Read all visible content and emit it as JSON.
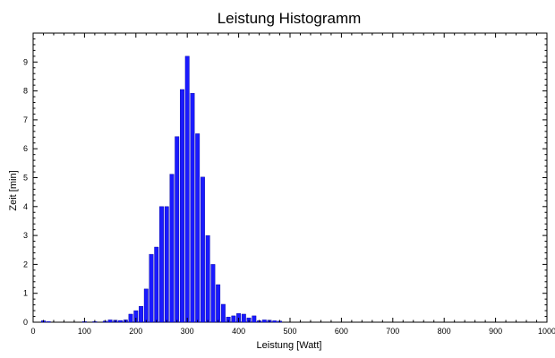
{
  "chart_data": {
    "type": "bar",
    "title": "Leistung Histogramm",
    "xlabel": "Leistung [Watt]",
    "ylabel": "Zeit [min]",
    "xlim": [
      0,
      1000
    ],
    "ylim": [
      0,
      10
    ],
    "grid": false,
    "bar_color": "#1a1aff",
    "bar_edge_color": "#000099",
    "x_ticks": [
      0,
      100,
      200,
      300,
      400,
      500,
      600,
      700,
      800,
      900,
      1000
    ],
    "x_tick_labels": [
      "0",
      "100",
      "200",
      "300",
      "400",
      "500",
      "600",
      "700",
      "800",
      "900",
      "1000"
    ],
    "y_ticks": [
      0,
      1,
      2,
      3,
      4,
      5,
      6,
      7,
      8,
      9
    ],
    "y_tick_labels": [
      "0",
      "1",
      "2",
      "3",
      "4",
      "5",
      "6",
      "7",
      "8",
      "9"
    ],
    "bin_width": 10,
    "bins": [
      {
        "x": 20,
        "y": 0.05
      },
      {
        "x": 30,
        "y": 0.02
      },
      {
        "x": 100,
        "y": 0.02
      },
      {
        "x": 120,
        "y": 0.02
      },
      {
        "x": 140,
        "y": 0.04
      },
      {
        "x": 150,
        "y": 0.08
      },
      {
        "x": 160,
        "y": 0.07
      },
      {
        "x": 170,
        "y": 0.06
      },
      {
        "x": 180,
        "y": 0.08
      },
      {
        "x": 190,
        "y": 0.28
      },
      {
        "x": 200,
        "y": 0.4
      },
      {
        "x": 210,
        "y": 0.55
      },
      {
        "x": 220,
        "y": 1.15
      },
      {
        "x": 230,
        "y": 2.35
      },
      {
        "x": 240,
        "y": 2.6
      },
      {
        "x": 250,
        "y": 4.0
      },
      {
        "x": 260,
        "y": 4.0
      },
      {
        "x": 270,
        "y": 5.12
      },
      {
        "x": 280,
        "y": 6.42
      },
      {
        "x": 290,
        "y": 8.05
      },
      {
        "x": 300,
        "y": 9.2
      },
      {
        "x": 310,
        "y": 7.92
      },
      {
        "x": 320,
        "y": 6.52
      },
      {
        "x": 330,
        "y": 5.02
      },
      {
        "x": 340,
        "y": 3.0
      },
      {
        "x": 350,
        "y": 2.0
      },
      {
        "x": 360,
        "y": 1.3
      },
      {
        "x": 370,
        "y": 0.62
      },
      {
        "x": 380,
        "y": 0.18
      },
      {
        "x": 390,
        "y": 0.22
      },
      {
        "x": 400,
        "y": 0.3
      },
      {
        "x": 410,
        "y": 0.28
      },
      {
        "x": 420,
        "y": 0.15
      },
      {
        "x": 430,
        "y": 0.22
      },
      {
        "x": 440,
        "y": 0.05
      },
      {
        "x": 450,
        "y": 0.08
      },
      {
        "x": 460,
        "y": 0.07
      },
      {
        "x": 470,
        "y": 0.05
      },
      {
        "x": 480,
        "y": 0.04
      }
    ]
  }
}
